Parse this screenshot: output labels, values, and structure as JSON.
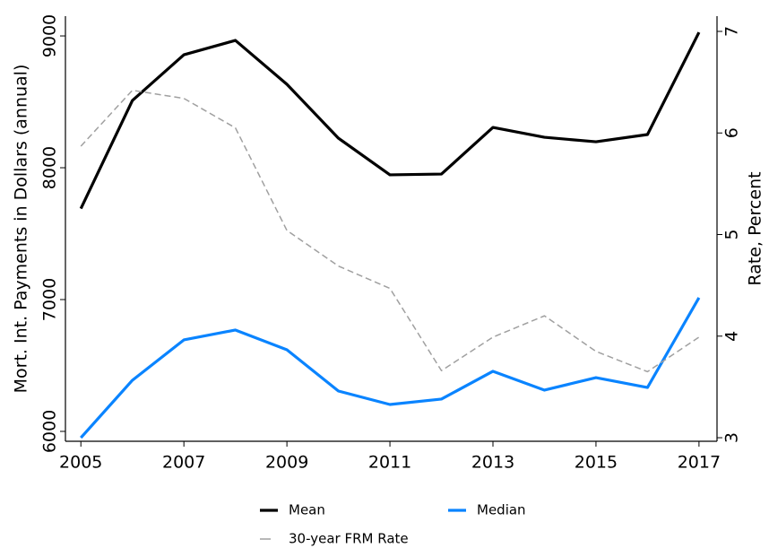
{
  "chart_data": {
    "type": "line",
    "x": [
      2005,
      2006,
      2007,
      2008,
      2009,
      2010,
      2011,
      2012,
      2013,
      2014,
      2015,
      2016,
      2017
    ],
    "xlim": [
      2004.7,
      2017.35
    ],
    "xticks": [
      2005,
      2007,
      2009,
      2011,
      2013,
      2015,
      2017
    ],
    "ylabel": "Mort. Int. Payments in Dollars (annual)",
    "y2label": "Rate, Percent",
    "ylim": [
      5925,
      9150
    ],
    "yticks": [
      6000,
      7000,
      8000,
      9000
    ],
    "y2lim": [
      2.965,
      7.15
    ],
    "y2ticks": [
      3,
      4,
      5,
      6,
      7
    ],
    "grid": false,
    "legend": "bottom",
    "series": [
      {
        "name": "Mean",
        "color": "#000000",
        "linestyle": "solid",
        "values": [
          7690,
          8510,
          8857,
          8966,
          8633,
          8224,
          7946,
          7952,
          8306,
          8231,
          8197,
          8252,
          9027
        ]
      },
      {
        "name": "Median",
        "color": "#0a84ff",
        "linestyle": "solid",
        "values": [
          5952,
          6388,
          6694,
          6769,
          6619,
          6306,
          6204,
          6245,
          6456,
          6313,
          6408,
          6333,
          7014
        ]
      },
      {
        "name": "30-year FRM Rate",
        "color": "#a0a0a0",
        "linestyle": "dashed",
        "axis": "y2",
        "values": [
          5.87,
          6.42,
          6.34,
          6.05,
          5.04,
          4.69,
          4.47,
          3.66,
          3.99,
          4.2,
          3.85,
          3.65,
          3.99
        ]
      }
    ]
  }
}
